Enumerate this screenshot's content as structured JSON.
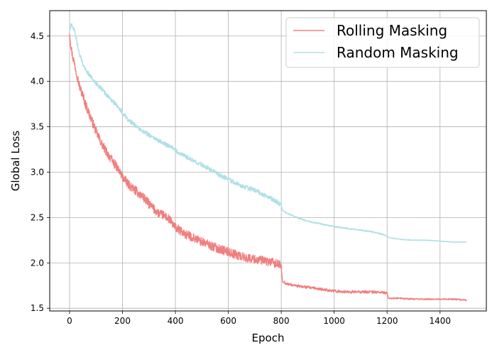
{
  "chart_data": {
    "type": "line",
    "xlabel": "Epoch",
    "ylabel": "Global Loss",
    "xlim": [
      -75,
      1575
    ],
    "ylim": [
      1.47,
      4.78
    ],
    "xticks": [
      0,
      200,
      400,
      600,
      800,
      1000,
      1200,
      1400
    ],
    "yticks": [
      1.5,
      2.0,
      2.5,
      3.0,
      3.5,
      4.0,
      4.5
    ],
    "grid": true,
    "legend_position": "top-right",
    "series": [
      {
        "name": "Rolling Masking",
        "color": "#f08080",
        "noise": 0.05,
        "values": [
          [
            0,
            4.55
          ],
          [
            5,
            4.4
          ],
          [
            10,
            4.3
          ],
          [
            20,
            4.18
          ],
          [
            30,
            4.05
          ],
          [
            40,
            3.92
          ],
          [
            50,
            3.85
          ],
          [
            60,
            3.75
          ],
          [
            80,
            3.6
          ],
          [
            100,
            3.45
          ],
          [
            120,
            3.32
          ],
          [
            140,
            3.22
          ],
          [
            160,
            3.13
          ],
          [
            180,
            3.05
          ],
          [
            200,
            2.95
          ],
          [
            220,
            2.87
          ],
          [
            240,
            2.82
          ],
          [
            260,
            2.77
          ],
          [
            280,
            2.72
          ],
          [
            300,
            2.65
          ],
          [
            320,
            2.59
          ],
          [
            340,
            2.54
          ],
          [
            360,
            2.52
          ],
          [
            380,
            2.47
          ],
          [
            400,
            2.39
          ],
          [
            420,
            2.35
          ],
          [
            440,
            2.31
          ],
          [
            460,
            2.29
          ],
          [
            480,
            2.26
          ],
          [
            500,
            2.23
          ],
          [
            520,
            2.21
          ],
          [
            540,
            2.18
          ],
          [
            560,
            2.16
          ],
          [
            580,
            2.14
          ],
          [
            600,
            2.12
          ],
          [
            620,
            2.1
          ],
          [
            640,
            2.08
          ],
          [
            660,
            2.06
          ],
          [
            680,
            2.05
          ],
          [
            700,
            2.04
          ],
          [
            720,
            2.03
          ],
          [
            740,
            2.02
          ],
          [
            760,
            2.01
          ],
          [
            780,
            1.99
          ],
          [
            799,
            1.97
          ],
          [
            805,
            1.8
          ],
          [
            820,
            1.77
          ],
          [
            850,
            1.75
          ],
          [
            900,
            1.73
          ],
          [
            950,
            1.71
          ],
          [
            1000,
            1.69
          ],
          [
            1050,
            1.68
          ],
          [
            1100,
            1.68
          ],
          [
            1150,
            1.68
          ],
          [
            1199,
            1.67
          ],
          [
            1205,
            1.61
          ],
          [
            1250,
            1.61
          ],
          [
            1300,
            1.6
          ],
          [
            1350,
            1.6
          ],
          [
            1400,
            1.6
          ],
          [
            1450,
            1.6
          ],
          [
            1500,
            1.59
          ]
        ]
      },
      {
        "name": "Random Masking",
        "color": "#b0e0e6",
        "noise": 0.025,
        "values": [
          [
            0,
            4.58
          ],
          [
            5,
            4.61
          ],
          [
            10,
            4.62
          ],
          [
            20,
            4.55
          ],
          [
            30,
            4.4
          ],
          [
            40,
            4.28
          ],
          [
            50,
            4.2
          ],
          [
            60,
            4.13
          ],
          [
            80,
            4.05
          ],
          [
            100,
            3.98
          ],
          [
            120,
            3.92
          ],
          [
            140,
            3.85
          ],
          [
            160,
            3.79
          ],
          [
            180,
            3.73
          ],
          [
            200,
            3.66
          ],
          [
            220,
            3.58
          ],
          [
            240,
            3.53
          ],
          [
            260,
            3.49
          ],
          [
            280,
            3.45
          ],
          [
            300,
            3.41
          ],
          [
            320,
            3.37
          ],
          [
            340,
            3.34
          ],
          [
            360,
            3.31
          ],
          [
            380,
            3.28
          ],
          [
            400,
            3.24
          ],
          [
            420,
            3.2
          ],
          [
            440,
            3.17
          ],
          [
            460,
            3.14
          ],
          [
            480,
            3.11
          ],
          [
            500,
            3.08
          ],
          [
            520,
            3.05
          ],
          [
            540,
            3.02
          ],
          [
            560,
            2.98
          ],
          [
            580,
            2.95
          ],
          [
            600,
            2.92
          ],
          [
            620,
            2.89
          ],
          [
            640,
            2.86
          ],
          [
            660,
            2.84
          ],
          [
            680,
            2.82
          ],
          [
            700,
            2.8
          ],
          [
            720,
            2.77
          ],
          [
            740,
            2.74
          ],
          [
            760,
            2.71
          ],
          [
            780,
            2.68
          ],
          [
            799,
            2.64
          ],
          [
            805,
            2.58
          ],
          [
            820,
            2.55
          ],
          [
            850,
            2.51
          ],
          [
            900,
            2.46
          ],
          [
            950,
            2.43
          ],
          [
            1000,
            2.4
          ],
          [
            1050,
            2.38
          ],
          [
            1100,
            2.36
          ],
          [
            1150,
            2.34
          ],
          [
            1199,
            2.3
          ],
          [
            1205,
            2.28
          ],
          [
            1250,
            2.26
          ],
          [
            1300,
            2.25
          ],
          [
            1350,
            2.25
          ],
          [
            1400,
            2.24
          ],
          [
            1450,
            2.23
          ],
          [
            1500,
            2.23
          ]
        ]
      }
    ]
  }
}
